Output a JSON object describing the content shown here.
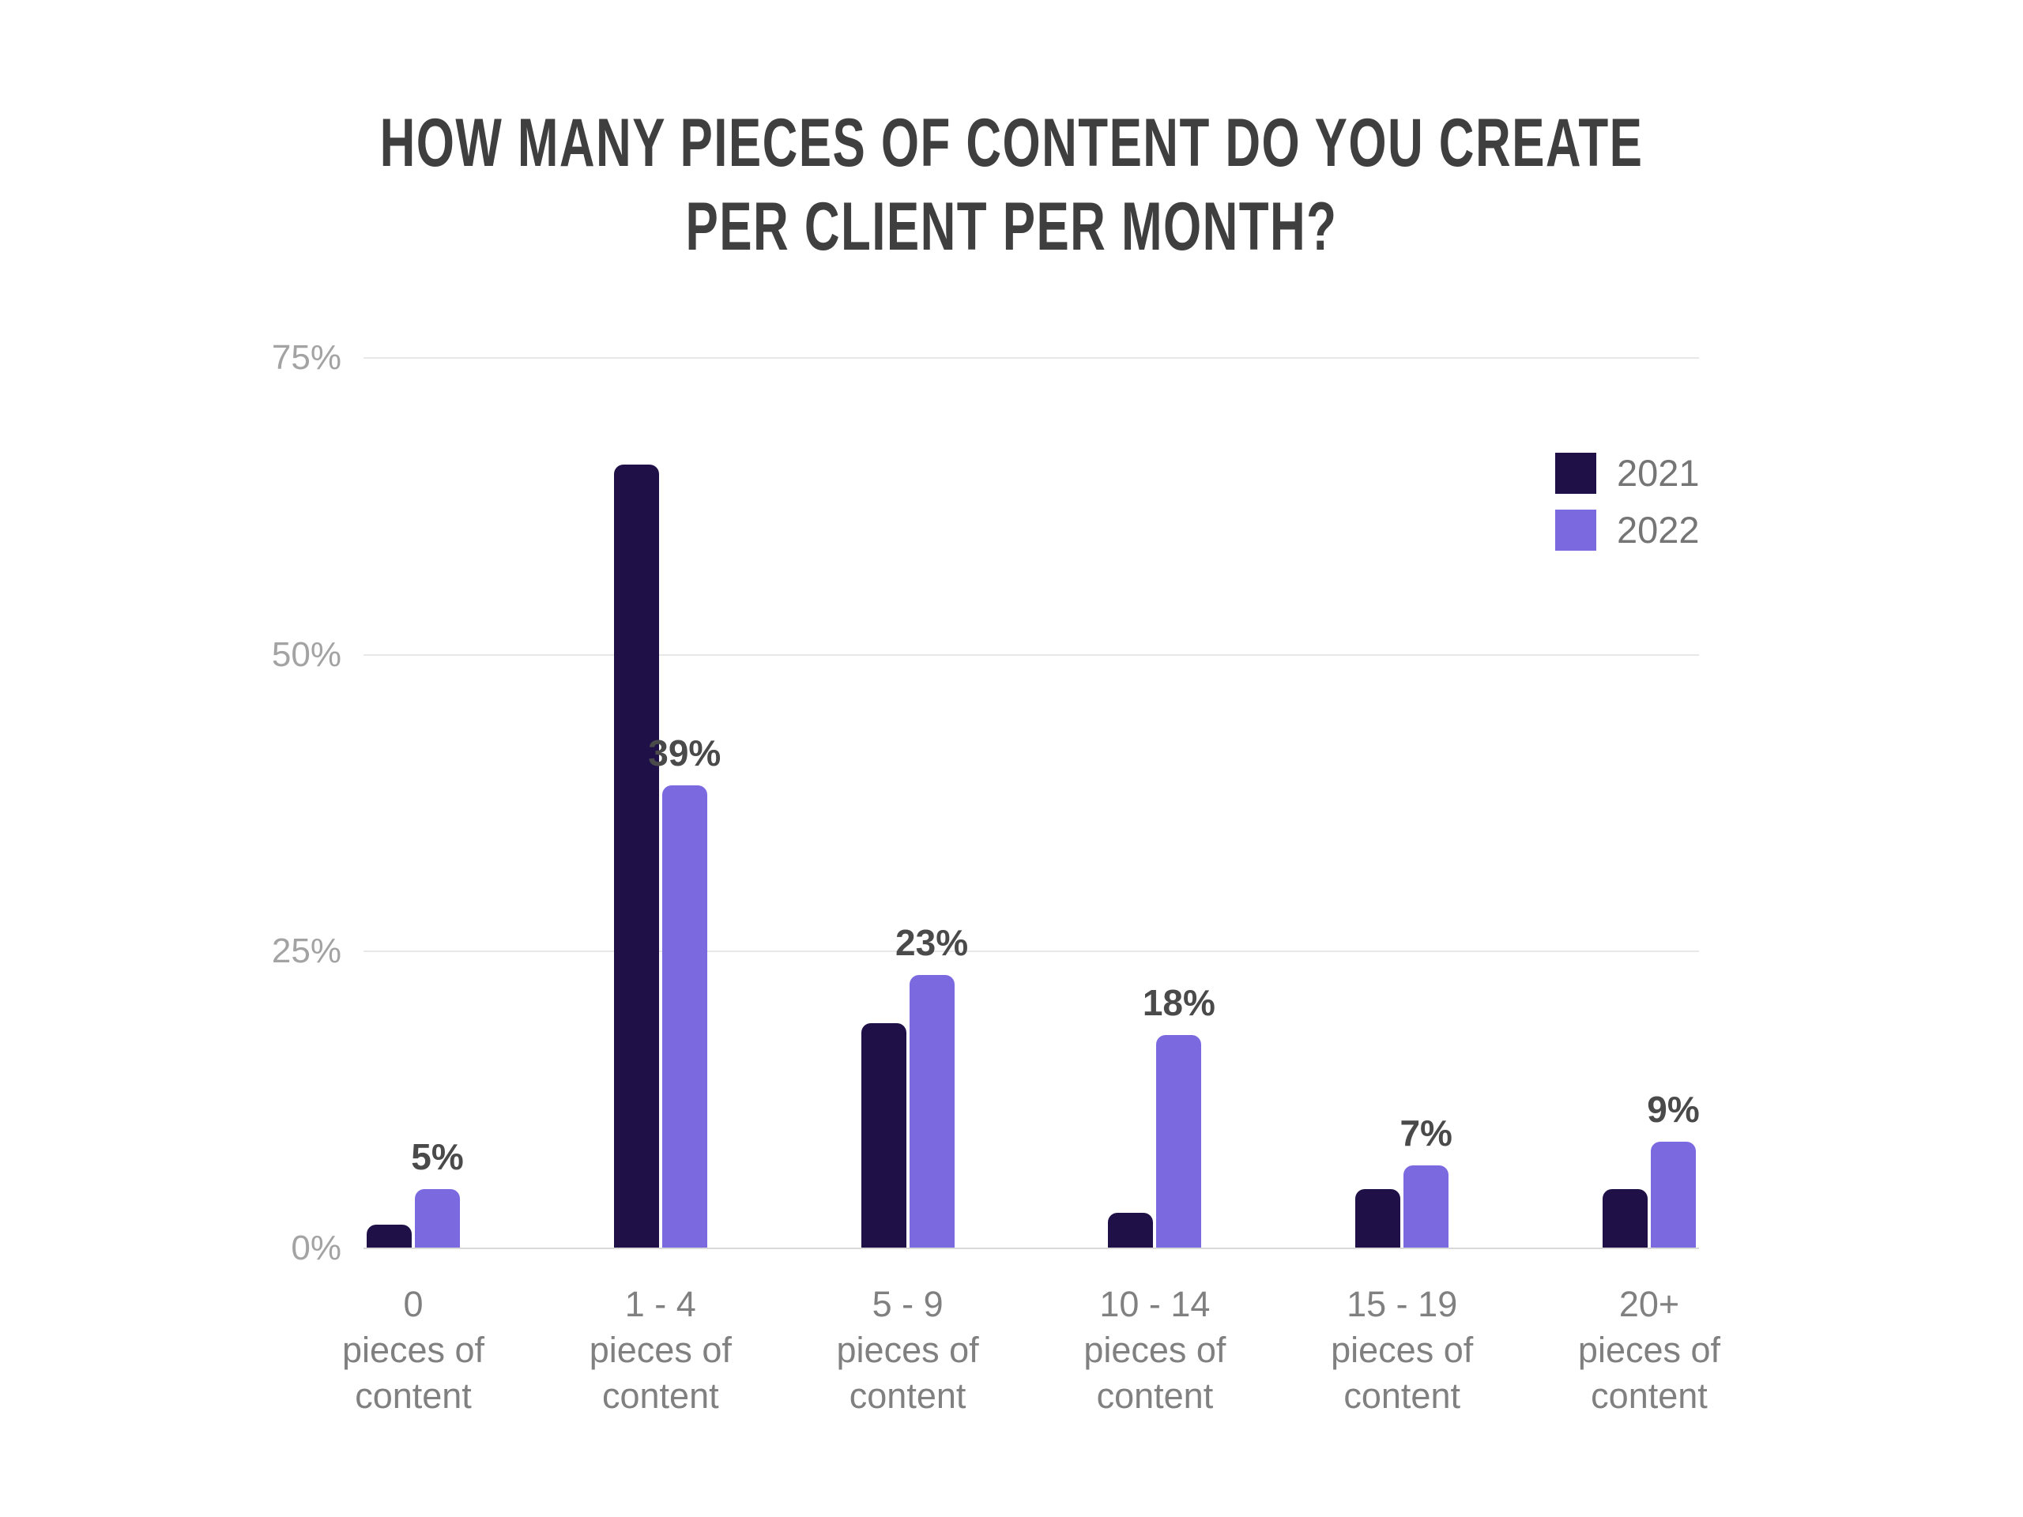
{
  "header": {
    "line1": "HOW MANY PIECES OF CONTENT DO YOU CREATE",
    "line2": "PER CLIENT PER MONTH?"
  },
  "chart_data": {
    "type": "bar",
    "title": "HOW MANY PIECES OF CONTENT DO YOU CREATE PER CLIENT PER MONTH?",
    "categories": [
      "0",
      "1 - 4",
      "5 - 9",
      "10 - 14",
      "15 - 19",
      "20+"
    ],
    "category_sublabel_lines": [
      "pieces of",
      "content"
    ],
    "series": [
      {
        "name": "2021",
        "color": "#201048",
        "values": [
          2,
          66,
          19,
          3,
          5,
          5
        ],
        "labels": [
          "",
          "",
          "",
          "",
          "",
          ""
        ]
      },
      {
        "name": "2022",
        "color": "#7b69e0",
        "values": [
          5,
          39,
          23,
          18,
          7,
          9
        ],
        "labels": [
          "5%",
          "39%",
          "23%",
          "18%",
          "7%",
          "9%"
        ]
      }
    ],
    "xlabel": "",
    "ylabel": "",
    "ylim": [
      0,
      75
    ],
    "yticks": [
      "0%",
      "25%",
      "50%",
      "75%"
    ],
    "ytick_values": [
      0,
      25,
      50,
      75
    ],
    "grid": "horizontal",
    "legend_position": "top-right"
  },
  "colors": {
    "background": "#ffffff",
    "title_text": "#3f3f3f",
    "data_label_text": "#4a4a4a",
    "axis_text": "#808080",
    "ytick_text": "#a3a3a3",
    "legend_text": "#757575",
    "gridline": "#e8e8e8",
    "baseline": "#d9d9d9",
    "series_2021": "#201048",
    "series_2022": "#7b69e0"
  }
}
